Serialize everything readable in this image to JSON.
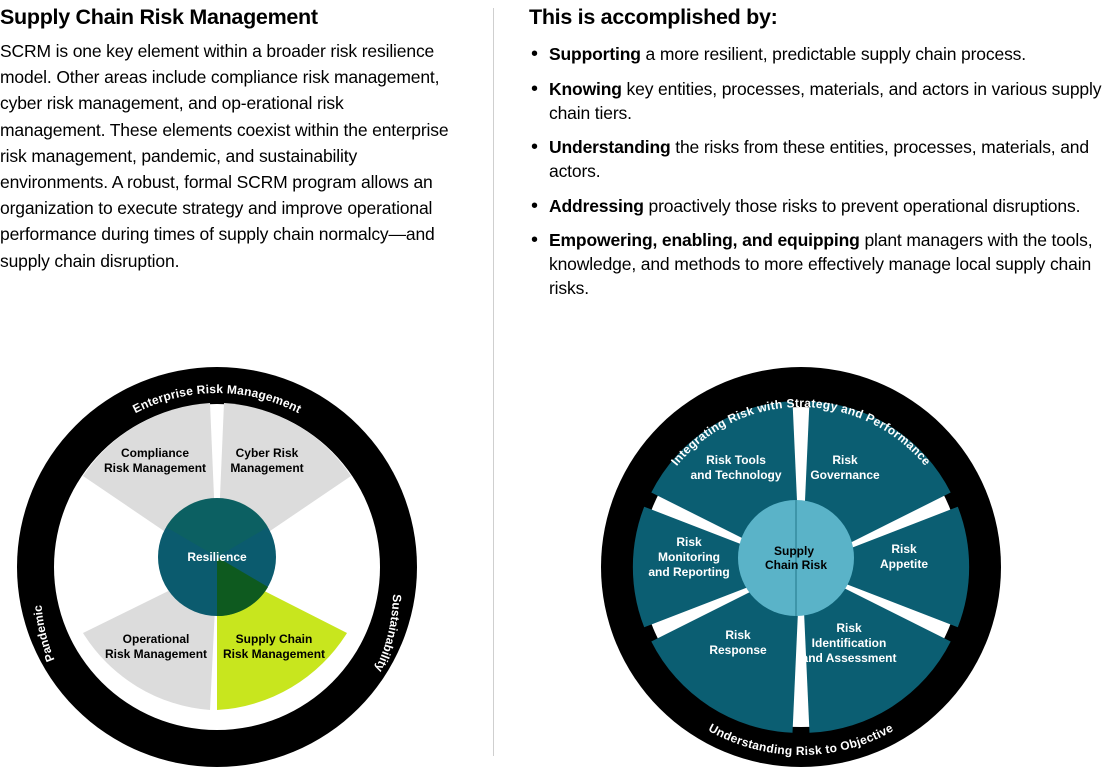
{
  "left": {
    "title": "Supply Chain Risk Management",
    "paragraph": "SCRM is one key element within a broader risk resilience model. Other areas include compliance risk management, cyber risk management, and op-erational risk management. These elements coexist within the enterprise risk management, pandemic, and sustainability environments. A robust, formal SCRM program allows an organization to execute strategy and improve operational performance during times of supply chain normalcy—and supply chain disruption."
  },
  "right": {
    "title": "This is accomplished by:",
    "bullets": [
      {
        "bold": "Supporting",
        "text": " a more resilient, predictable supply chain process."
      },
      {
        "bold": "Knowing",
        "text": " key entities, processes, materials, and actors in various supply chain tiers."
      },
      {
        "bold": "Understanding",
        "text": " the risks from these entities, processes, materials, and actors."
      },
      {
        "bold": "Addressing",
        "text": " proactively those risks to prevent operational disruptions."
      },
      {
        "bold": "Empowering, enabling, and equipping",
        "text": " plant managers with the tools, knowledge, and methods to more effectively manage local supply chain risks."
      }
    ]
  },
  "diagram1": {
    "ring": {
      "top": "Enterprise Risk Management",
      "left": "Pandemic",
      "right": "Sustainability"
    },
    "center": "Resilience",
    "segments": [
      {
        "line1": "Compliance",
        "line2": "Risk Management"
      },
      {
        "line1": "Cyber Risk",
        "line2": "Management"
      },
      {
        "line1": "Operational",
        "line2": "Risk Management"
      },
      {
        "line1": "Supply Chain",
        "line2": "Risk Management"
      }
    ],
    "colors": {
      "ring": "#000000",
      "segment": "#dcdcdc",
      "highlight": "#c8e61e",
      "center": "#0b5b6e",
      "center_overlap": "#0d6a4d",
      "center_overlap_highlight": "#0e5a1f"
    }
  },
  "diagram2": {
    "ring": {
      "top": "Integrating Risk with Strategy and Performance",
      "bottom": "Understanding Risk to Objective"
    },
    "center": {
      "line1": "Supply",
      "line2": "Chain Risk"
    },
    "segments": [
      {
        "lines": [
          "Risk Tools",
          "and Technology"
        ]
      },
      {
        "lines": [
          "Risk",
          "Governance"
        ]
      },
      {
        "lines": [
          "Risk",
          "Appetite"
        ]
      },
      {
        "lines": [
          "Risk",
          "Identification",
          "and Assessment"
        ]
      },
      {
        "lines": [
          "Risk",
          "Response"
        ]
      },
      {
        "lines": [
          "Risk",
          "Monitoring",
          "and Reporting"
        ]
      }
    ],
    "colors": {
      "ring": "#000000",
      "segment": "#0b5e72",
      "center": "#5ab3c8"
    }
  }
}
